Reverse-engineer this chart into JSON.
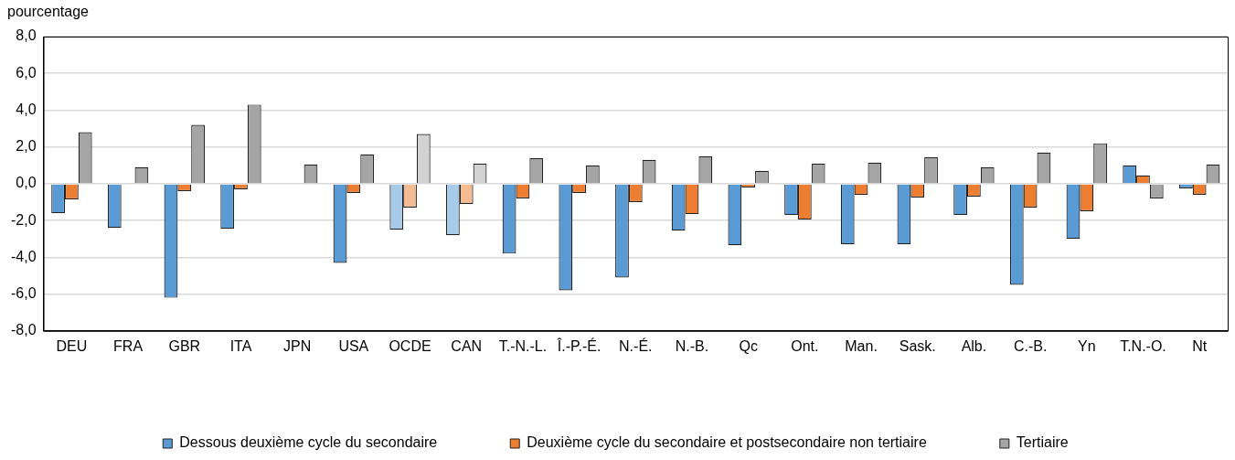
{
  "chart_data": {
    "type": "bar",
    "ylabel": "pourcentage",
    "categories": [
      "DEU",
      "FRA",
      "GBR",
      "ITA",
      "JPN",
      "USA",
      "OCDE",
      "CAN",
      "T.-N.-L.",
      "Î.-P.-É.",
      "N.-É.",
      "N.-B.",
      "Qc",
      "Ont.",
      "Man.",
      "Sask.",
      "Alb.",
      "C.-B.",
      "Yn",
      "T.N.-O.",
      "Nt"
    ],
    "series": [
      {
        "name": "Dessous deuxième cycle du secondaire",
        "color": "#5b9bd5",
        "colors": [
          "#5b9bd5",
          "#5b9bd5",
          "#5b9bd5",
          "#5b9bd5",
          "#5b9bd5",
          "#5b9bd5",
          "#a9cbea",
          "#a9cbea",
          "#5b9bd5",
          "#5b9bd5",
          "#5b9bd5",
          "#5b9bd5",
          "#5b9bd5",
          "#5b9bd5",
          "#5b9bd5",
          "#5b9bd5",
          "#5b9bd5",
          "#5b9bd5",
          "#5b9bd5",
          "#5b9bd5",
          "#5b9bd5"
        ],
        "values": [
          -1.6,
          -2.4,
          -6.2,
          -2.45,
          null,
          -4.3,
          -2.5,
          -2.8,
          -3.8,
          -5.8,
          -5.1,
          -2.55,
          -3.35,
          -1.7,
          -3.3,
          -3.3,
          -1.7,
          -5.5,
          -3.0,
          1.0,
          -0.25
        ]
      },
      {
        "name": "Deuxième cycle du secondaire et postsecondaire non tertiaire",
        "color": "#ed7d31",
        "colors": [
          "#ed7d31",
          "#ed7d31",
          "#ed7d31",
          "#ed7d31",
          "#ed7d31",
          "#ed7d31",
          "#f5bb93",
          "#f5bb93",
          "#ed7d31",
          "#ed7d31",
          "#ed7d31",
          "#ed7d31",
          "#ed7d31",
          "#ed7d31",
          "#ed7d31",
          "#ed7d31",
          "#ed7d31",
          "#ed7d31",
          "#ed7d31",
          "#ed7d31",
          "#ed7d31"
        ],
        "values": [
          -0.85,
          0.0,
          -0.4,
          -0.3,
          null,
          -0.5,
          -1.3,
          -1.1,
          -0.8,
          -0.5,
          -1.0,
          -1.65,
          -0.2,
          -1.95,
          -0.6,
          -0.75,
          -0.7,
          -1.3,
          -1.5,
          0.45,
          -0.6
        ]
      },
      {
        "name": "Tertiaire",
        "color": "#a5a5a5",
        "colors": [
          "#a5a5a5",
          "#a5a5a5",
          "#a5a5a5",
          "#a5a5a5",
          "#a5a5a5",
          "#a5a5a5",
          "#d2d2d2",
          "#d2d2d2",
          "#a5a5a5",
          "#a5a5a5",
          "#a5a5a5",
          "#a5a5a5",
          "#a5a5a5",
          "#a5a5a5",
          "#a5a5a5",
          "#a5a5a5",
          "#a5a5a5",
          "#a5a5a5",
          "#a5a5a5",
          "#a5a5a5",
          "#a5a5a5"
        ],
        "values": [
          2.8,
          0.9,
          3.2,
          4.3,
          1.05,
          1.6,
          2.7,
          1.1,
          1.4,
          1.0,
          1.3,
          1.5,
          0.7,
          1.1,
          1.15,
          1.45,
          0.9,
          1.7,
          2.2,
          -0.8,
          1.05
        ]
      }
    ],
    "ylim": [
      -8,
      8
    ],
    "yticks": [
      {
        "value": -8,
        "label": "-8,0"
      },
      {
        "value": -6,
        "label": "-6,0"
      },
      {
        "value": -4,
        "label": "-4,0"
      },
      {
        "value": -2,
        "label": "-2,0"
      },
      {
        "value": 0,
        "label": "0,0"
      },
      {
        "value": 2,
        "label": "2,0"
      },
      {
        "value": 4,
        "label": "4,0"
      },
      {
        "value": 6,
        "label": "6,0"
      },
      {
        "value": 8,
        "label": "8,0"
      }
    ],
    "grid": "y",
    "legend": "bottom"
  }
}
